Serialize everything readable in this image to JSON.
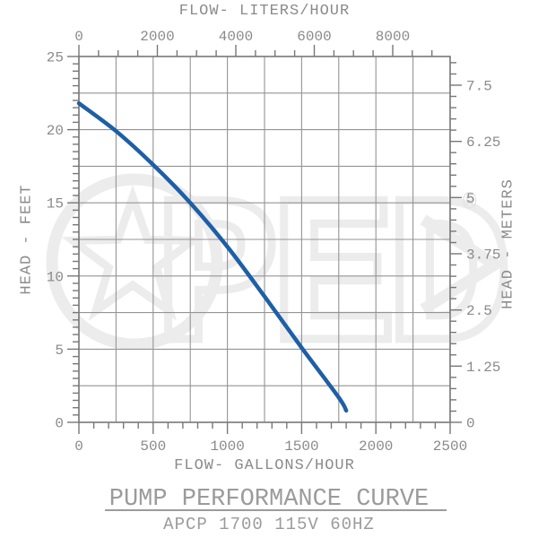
{
  "watermark": {
    "text": "PED",
    "registered_mark": "®"
  },
  "colors": {
    "curve": "#1e5fa5",
    "grid": "#949494",
    "frame": "#787878",
    "tick": "#787878",
    "tick_label": "#8a8a8a",
    "watermark": "#ececec"
  },
  "chart_data": {
    "type": "line",
    "title": "PUMP PERFORMANCE CURVE",
    "subtitle": "APCP 1700 115V 60HZ",
    "grid": "on",
    "x_bottom": {
      "label": "FLOW- GALLONS/HOUR",
      "min": 0,
      "max": 2500,
      "major_step": 500,
      "minor_step": 100,
      "grid_step": 250,
      "tick_labels": [
        "0",
        "500",
        "1000",
        "1500",
        "2000",
        "2500"
      ]
    },
    "x_top": {
      "label": "FLOW- LITERS/HOUR",
      "min": 0,
      "max": 8000,
      "minor_max": 9000,
      "major_step": 2000,
      "minor_step": 500,
      "gallons_per_liter": 0.264172,
      "tick_labels": [
        "0",
        "2000",
        "4000",
        "6000",
        "8000"
      ]
    },
    "y_left": {
      "label": "HEAD - FEET",
      "min": 0,
      "max": 25,
      "major_step": 5,
      "minor_step": 0.5,
      "grid_step": 2.5,
      "tick_labels": [
        "0",
        "5",
        "10",
        "15",
        "20",
        "25"
      ]
    },
    "y_right": {
      "label": "HEAD - METERS",
      "min": 0,
      "max": 7.5,
      "minor_max": 8.0,
      "major_step": 1.25,
      "minor_step": 0.25,
      "tick_labels": [
        "0",
        "1.25",
        "2.5",
        "3.75",
        "5",
        "6.25",
        "7.5"
      ]
    },
    "series": [
      {
        "name": "head-vs-flow",
        "units": [
          "gallons/hour",
          "feet"
        ],
        "points": [
          [
            0,
            21.8
          ],
          [
            250,
            19.9
          ],
          [
            500,
            17.6
          ],
          [
            750,
            15.0
          ],
          [
            1000,
            12.0
          ],
          [
            1250,
            8.6
          ],
          [
            1500,
            5.1
          ],
          [
            1750,
            1.7
          ],
          [
            1800,
            0.8
          ]
        ]
      }
    ]
  }
}
